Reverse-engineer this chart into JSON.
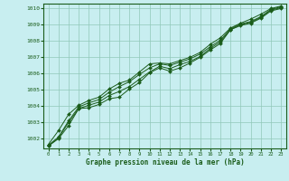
{
  "title": "Graphe pression niveau de la mer (hPa)",
  "bg_color": "#c8eef0",
  "grid_color": "#90c8b8",
  "line_color": "#1a5c1a",
  "marker_color": "#1a5c1a",
  "xlim": [
    -0.5,
    23.5
  ],
  "ylim": [
    1001.4,
    1010.3
  ],
  "yticks": [
    1002,
    1003,
    1004,
    1005,
    1006,
    1007,
    1008,
    1009,
    1010
  ],
  "xticks": [
    0,
    1,
    2,
    3,
    4,
    5,
    6,
    7,
    8,
    9,
    10,
    11,
    12,
    13,
    14,
    15,
    16,
    17,
    18,
    19,
    20,
    21,
    22,
    23
  ],
  "series": [
    [
      1001.55,
      1002.0,
      1002.8,
      1003.85,
      1003.9,
      1004.1,
      1004.45,
      1004.55,
      1005.05,
      1005.45,
      1006.05,
      1006.35,
      1006.15,
      1006.35,
      1006.65,
      1007.0,
      1007.45,
      1007.85,
      1008.7,
      1008.95,
      1009.1,
      1009.4,
      1009.85,
      1010.0
    ],
    [
      1001.55,
      1002.05,
      1003.0,
      1003.85,
      1004.05,
      1004.25,
      1004.65,
      1004.9,
      1005.2,
      1005.65,
      1006.1,
      1006.45,
      1006.3,
      1006.55,
      1006.75,
      1007.05,
      1007.55,
      1007.95,
      1008.7,
      1009.0,
      1009.15,
      1009.45,
      1009.9,
      1010.05
    ],
    [
      1001.6,
      1002.1,
      1003.1,
      1003.95,
      1004.2,
      1004.4,
      1004.85,
      1005.2,
      1005.5,
      1005.95,
      1006.35,
      1006.6,
      1006.5,
      1006.7,
      1006.9,
      1007.2,
      1007.65,
      1008.05,
      1008.75,
      1009.05,
      1009.2,
      1009.5,
      1009.95,
      1010.1
    ],
    [
      1001.65,
      1002.5,
      1003.5,
      1004.05,
      1004.35,
      1004.55,
      1005.05,
      1005.4,
      1005.6,
      1006.1,
      1006.6,
      1006.65,
      1006.6,
      1006.8,
      1007.0,
      1007.3,
      1007.8,
      1008.2,
      1008.8,
      1009.1,
      1009.35,
      1009.65,
      1010.0,
      1010.15
    ]
  ]
}
